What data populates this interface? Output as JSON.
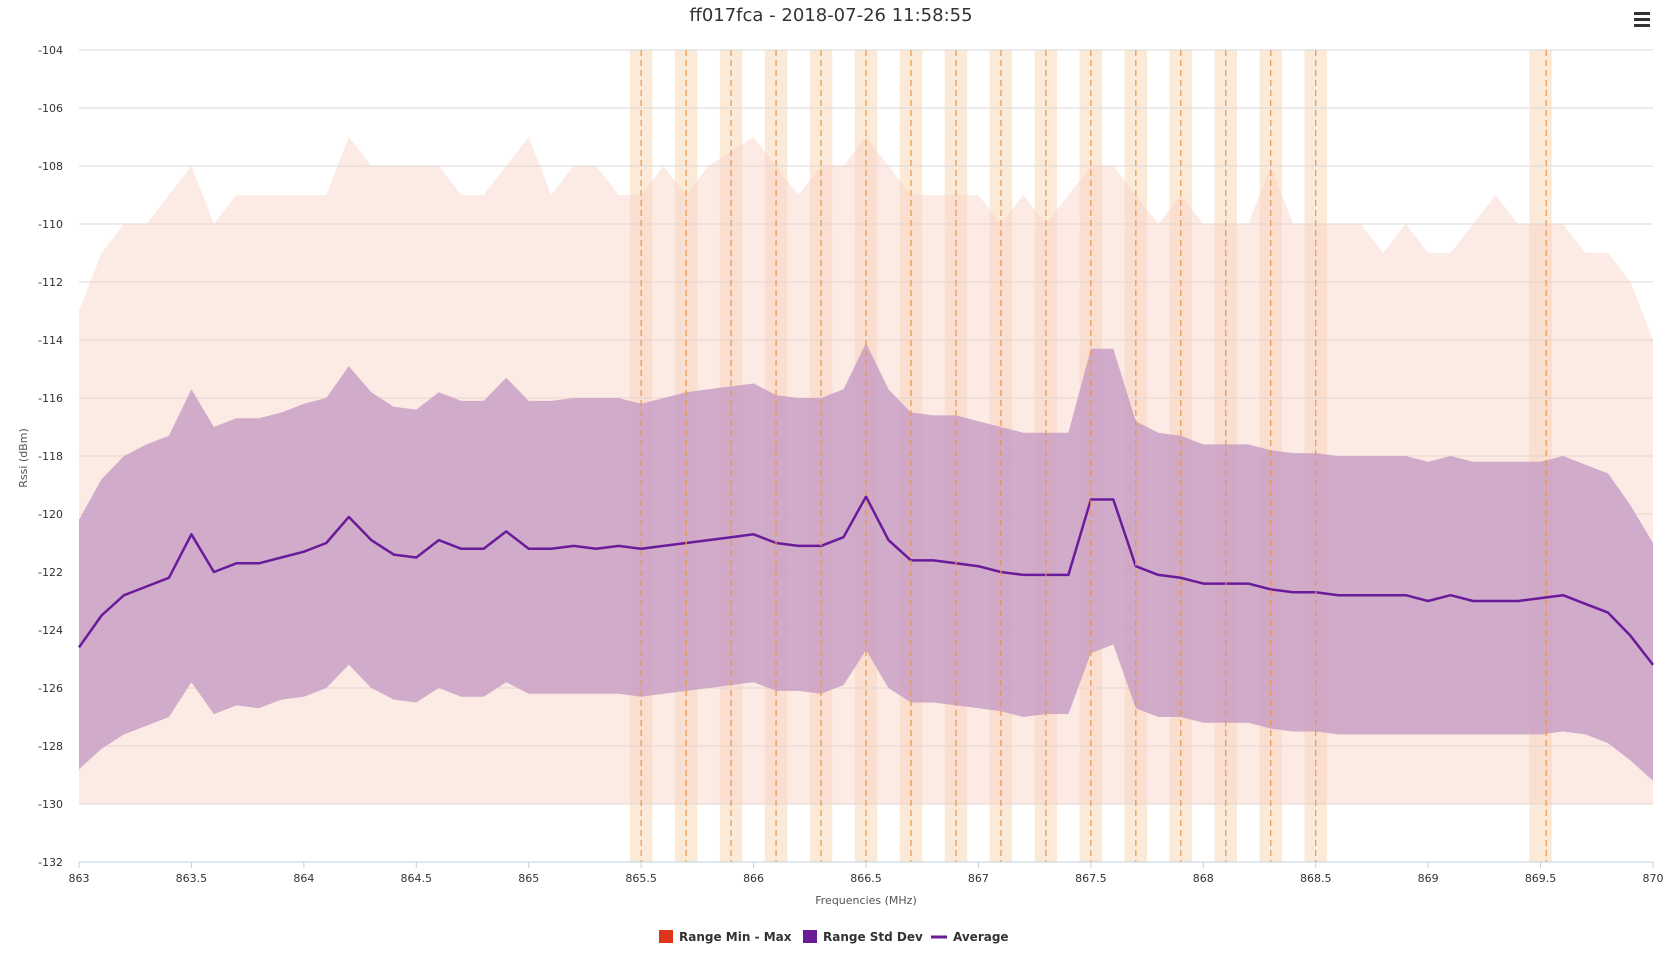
{
  "chart_data": {
    "type": "area",
    "title": "ff017fca - 2018-07-26 11:58:55",
    "xlabel": "Frequencies (MHz)",
    "ylabel": "Rssi (dBm)",
    "xlim": [
      863,
      870
    ],
    "ylim": [
      -132,
      -104
    ],
    "xticks": [
      863,
      863.5,
      864,
      864.5,
      865,
      865.5,
      866,
      866.5,
      867,
      867.5,
      868,
      868.5,
      869,
      869.5,
      870
    ],
    "xtick_labels": [
      "863",
      "863.5",
      "864",
      "864.5",
      "865",
      "865.5",
      "866",
      "866.5",
      "867",
      "867.5",
      "868",
      "868.5",
      "869",
      "869.5",
      "870"
    ],
    "yticks": [
      -132,
      -130,
      -128,
      -126,
      -124,
      -122,
      -120,
      -118,
      -116,
      -114,
      -112,
      -110,
      -108,
      -106,
      -104
    ],
    "ytick_labels": [
      "-132",
      "-130",
      "-128",
      "-126",
      "-124",
      "-122",
      "-120",
      "-118",
      "-116",
      "-114",
      "-112",
      "-110",
      "-108",
      "-106",
      "-104"
    ],
    "grid": true,
    "legend": {
      "position": "bottom-center",
      "items": [
        {
          "label": "Range Min - Max",
          "color": "#e0351a",
          "symbol": "square"
        },
        {
          "label": "Range Std Dev",
          "color": "#6a1b9a",
          "symbol": "square"
        },
        {
          "label": "Average",
          "color": "#6a1b9a",
          "symbol": "line"
        }
      ]
    },
    "x": [
      863.0,
      863.1,
      863.2,
      863.3,
      863.4,
      863.5,
      863.6,
      863.7,
      863.8,
      863.9,
      864.0,
      864.1,
      864.2,
      864.3,
      864.4,
      864.5,
      864.6,
      864.7,
      864.8,
      864.9,
      865.0,
      865.1,
      865.2,
      865.3,
      865.4,
      865.5,
      865.6,
      865.7,
      865.8,
      865.9,
      866.0,
      866.1,
      866.2,
      866.3,
      866.4,
      866.5,
      866.6,
      866.7,
      866.8,
      866.9,
      867.0,
      867.1,
      867.2,
      867.3,
      867.4,
      867.5,
      867.6,
      867.7,
      867.8,
      867.9,
      868.0,
      868.1,
      868.2,
      868.3,
      868.4,
      868.5,
      868.6,
      868.7,
      868.8,
      868.9,
      869.0,
      869.1,
      869.2,
      869.3,
      869.4,
      869.5,
      869.6,
      869.7,
      869.8,
      869.9,
      870.0
    ],
    "series": [
      {
        "name": "Range Min - Max",
        "type": "arearange",
        "color": "#f8d0c4",
        "low": [
          -130,
          -130,
          -130,
          -130,
          -130,
          -130,
          -130,
          -130,
          -130,
          -130,
          -130,
          -130,
          -130,
          -130,
          -130,
          -130,
          -130,
          -130,
          -130,
          -130,
          -130,
          -130,
          -130,
          -130,
          -130,
          -130,
          -130,
          -130,
          -130,
          -130,
          -130,
          -130,
          -130,
          -130,
          -130,
          -130,
          -130,
          -130,
          -130,
          -130,
          -130,
          -130,
          -130,
          -130,
          -130,
          -130,
          -130,
          -130,
          -130,
          -130,
          -130,
          -130,
          -130,
          -130,
          -130,
          -130,
          -130,
          -130,
          -130,
          -130,
          -130,
          -130,
          -130,
          -130,
          -130,
          -130,
          -130,
          -130,
          -130,
          -130,
          -130
        ],
        "high": [
          -113,
          -111,
          -110,
          -110,
          -109,
          -108,
          -110,
          -109,
          -109,
          -109,
          -109,
          -109,
          -107,
          -108,
          -108,
          -108,
          -108,
          -109,
          -109,
          -108,
          -107,
          -109,
          -108,
          -108,
          -109,
          -109,
          -108,
          -109,
          -108,
          -107.5,
          -107,
          -108,
          -109,
          -108,
          -108,
          -107,
          -108,
          -109,
          -109,
          -109,
          -109,
          -110,
          -109,
          -110,
          -109,
          -108,
          -108,
          -109,
          -110,
          -109,
          -110,
          -110,
          -110,
          -108,
          -110,
          -110,
          -110,
          -110,
          -111,
          -110,
          -111,
          -111,
          -110,
          -109,
          -110,
          -110,
          -110,
          -111,
          -111,
          -112,
          -114
        ]
      },
      {
        "name": "Range Std Dev",
        "type": "arearange",
        "color": "#c9a0c6",
        "low": [
          -128.8,
          -128.1,
          -127.6,
          -127.3,
          -127.0,
          -125.8,
          -126.9,
          -126.6,
          -126.7,
          -126.4,
          -126.3,
          -126.0,
          -125.2,
          -126.0,
          -126.4,
          -126.5,
          -126.0,
          -126.3,
          -126.3,
          -125.8,
          -126.2,
          -126.2,
          -126.2,
          -126.2,
          -126.2,
          -126.3,
          -126.2,
          -126.1,
          -126.0,
          -125.9,
          -125.8,
          -126.1,
          -126.1,
          -126.2,
          -125.9,
          -124.7,
          -126.0,
          -126.5,
          -126.5,
          -126.6,
          -126.7,
          -126.8,
          -127.0,
          -126.9,
          -126.9,
          -124.8,
          -124.5,
          -126.7,
          -127.0,
          -127.0,
          -127.2,
          -127.2,
          -127.2,
          -127.4,
          -127.5,
          -127.5,
          -127.6,
          -127.6,
          -127.6,
          -127.6,
          -127.6,
          -127.6,
          -127.6,
          -127.6,
          -127.6,
          -127.6,
          -127.5,
          -127.6,
          -127.9,
          -128.5,
          -129.2
        ],
        "high": [
          -120.2,
          -118.8,
          -118.0,
          -117.6,
          -117.3,
          -115.7,
          -117.0,
          -116.7,
          -116.7,
          -116.5,
          -116.2,
          -116.0,
          -114.9,
          -115.8,
          -116.3,
          -116.4,
          -115.8,
          -116.1,
          -116.1,
          -115.3,
          -116.1,
          -116.1,
          -116.0,
          -116.0,
          -116.0,
          -116.2,
          -116.0,
          -115.8,
          -115.7,
          -115.6,
          -115.5,
          -115.9,
          -116.0,
          -116.0,
          -115.7,
          -114.1,
          -115.7,
          -116.5,
          -116.6,
          -116.6,
          -116.8,
          -117.0,
          -117.2,
          -117.2,
          -117.2,
          -114.3,
          -114.3,
          -116.8,
          -117.2,
          -117.3,
          -117.6,
          -117.6,
          -117.6,
          -117.8,
          -117.9,
          -117.9,
          -118.0,
          -118.0,
          -118.0,
          -118.0,
          -118.2,
          -118.0,
          -118.2,
          -118.2,
          -118.2,
          -118.2,
          -118.0,
          -118.3,
          -118.6,
          -119.7,
          -121.0
        ]
      },
      {
        "name": "Average",
        "type": "line",
        "color": "#6a1b9a",
        "values": [
          -124.6,
          -123.5,
          -122.8,
          -122.5,
          -122.2,
          -120.7,
          -122.0,
          -121.7,
          -121.7,
          -121.5,
          -121.3,
          -121.0,
          -120.1,
          -120.9,
          -121.4,
          -121.5,
          -120.9,
          -121.2,
          -121.2,
          -120.6,
          -121.2,
          -121.2,
          -121.1,
          -121.2,
          -121.1,
          -121.2,
          -121.1,
          -121.0,
          -120.9,
          -120.8,
          -120.7,
          -121.0,
          -121.1,
          -121.1,
          -120.8,
          -119.4,
          -120.9,
          -121.6,
          -121.6,
          -121.7,
          -121.8,
          -122.0,
          -122.1,
          -122.1,
          -122.1,
          -119.5,
          -119.5,
          -121.8,
          -122.1,
          -122.2,
          -122.4,
          -122.4,
          -122.4,
          -122.6,
          -122.7,
          -122.7,
          -122.8,
          -122.8,
          -122.8,
          -122.8,
          -123.0,
          -122.8,
          -123.0,
          -123.0,
          -123.0,
          -122.9,
          -122.8,
          -123.1,
          -123.4,
          -124.2,
          -125.2
        ]
      }
    ],
    "channel_bands": [
      {
        "from": 865.45,
        "to": 865.55
      },
      {
        "from": 865.65,
        "to": 865.75
      },
      {
        "from": 865.85,
        "to": 865.95
      },
      {
        "from": 866.05,
        "to": 866.15
      },
      {
        "from": 866.25,
        "to": 866.35
      },
      {
        "from": 866.45,
        "to": 866.55
      },
      {
        "from": 866.65,
        "to": 866.75
      },
      {
        "from": 866.85,
        "to": 866.95
      },
      {
        "from": 867.05,
        "to": 867.15
      },
      {
        "from": 867.25,
        "to": 867.35
      },
      {
        "from": 867.45,
        "to": 867.55
      },
      {
        "from": 867.65,
        "to": 867.75
      },
      {
        "from": 867.85,
        "to": 867.95
      },
      {
        "from": 868.05,
        "to": 868.15
      },
      {
        "from": 868.25,
        "to": 868.35
      },
      {
        "from": 868.45,
        "to": 868.55
      },
      {
        "from": 869.45,
        "to": 869.55
      }
    ],
    "channel_lines": [
      865.5,
      865.7,
      865.9,
      866.1,
      866.3,
      866.5,
      866.7,
      866.9,
      867.1,
      867.3,
      867.5,
      867.7,
      867.9,
      868.1,
      868.3,
      868.5,
      869.525
    ],
    "band_color": "#fbe3cc",
    "line_color": "#e8964a"
  }
}
